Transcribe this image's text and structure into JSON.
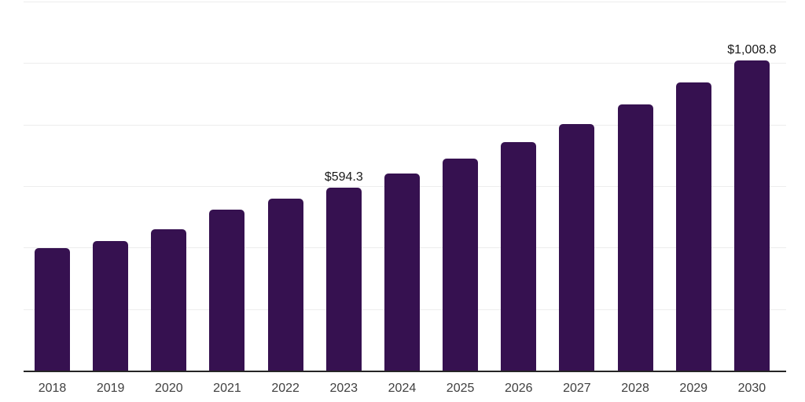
{
  "chart_data": {
    "type": "bar",
    "title": "",
    "xlabel": "",
    "ylabel": "",
    "categories": [
      "2018",
      "2019",
      "2020",
      "2021",
      "2022",
      "2023",
      "2024",
      "2025",
      "2026",
      "2027",
      "2028",
      "2029",
      "2030"
    ],
    "values": [
      398.1,
      421.5,
      459.3,
      523.0,
      558.9,
      594.3,
      640.0,
      689.0,
      743.0,
      801.6,
      866.4,
      936.2,
      1008.8
    ],
    "labels": [
      "",
      "",
      "",
      "",
      "",
      "$594.3",
      "",
      "",
      "",
      "",
      "",
      "",
      "$1,008.8"
    ],
    "ylim": [
      0,
      1200
    ],
    "gridline_values": [
      200,
      400,
      600,
      800,
      1000,
      1200
    ],
    "grid": "horizontal",
    "legend": "none",
    "colors": {
      "bar": "#361150",
      "axis": "#262626",
      "gridline": "#ededed",
      "value_label": "#1a1a1a",
      "tick_label": "#404040",
      "background": "#ffffff"
    }
  }
}
